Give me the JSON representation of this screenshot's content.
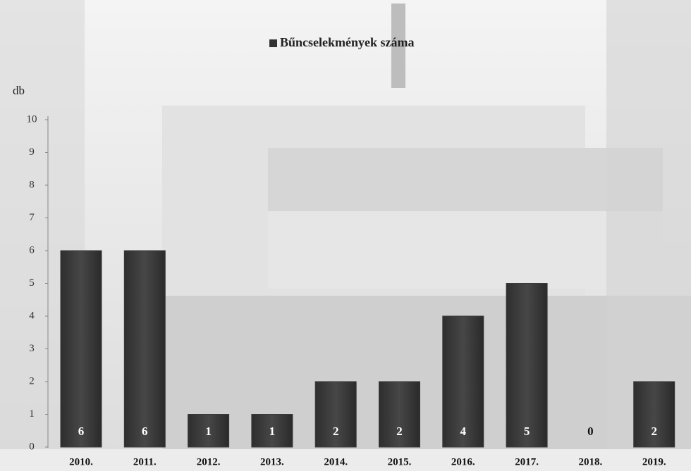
{
  "chart_data": {
    "type": "bar",
    "y_label": "db",
    "categories": [
      "2010.",
      "2011.",
      "2012.",
      "2013.",
      "2014.",
      "2015.",
      "2016.",
      "2017.",
      "2018.",
      "2019."
    ],
    "series": [
      {
        "name": "Bűncselekmények száma",
        "color": "#3a3a3a",
        "values": [
          6,
          6,
          1,
          1,
          2,
          2,
          4,
          5,
          0,
          2
        ]
      }
    ],
    "ylim": [
      0,
      10
    ],
    "yticks": [
      0,
      1,
      2,
      3,
      4,
      5,
      6,
      7,
      8,
      9,
      10
    ]
  }
}
